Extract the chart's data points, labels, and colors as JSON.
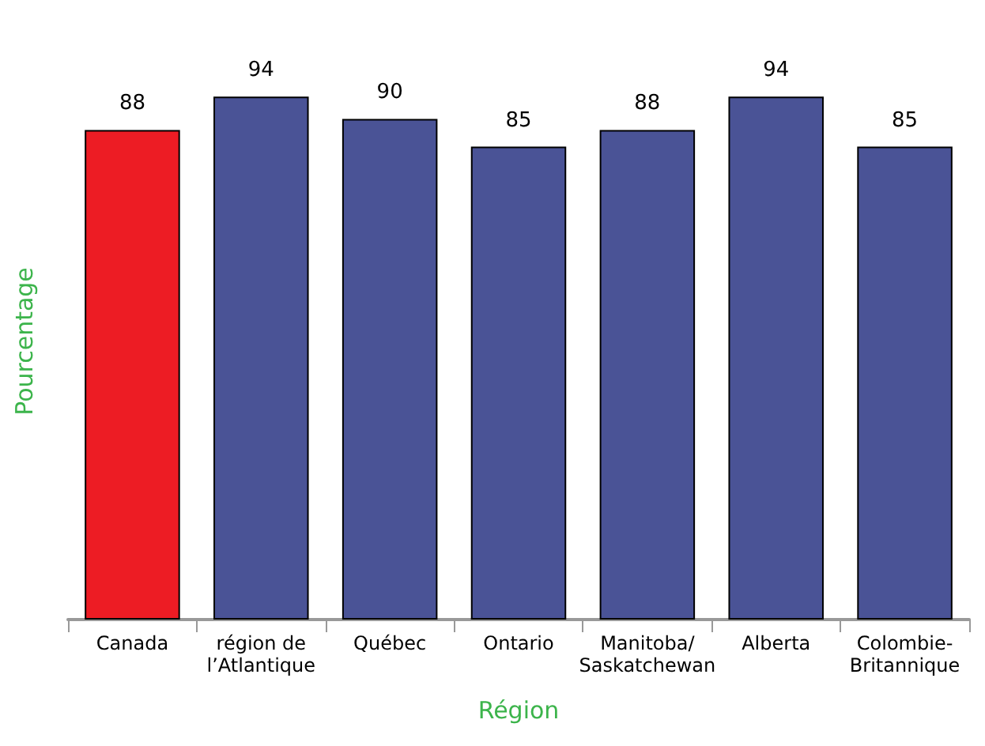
{
  "chart_data": {
    "type": "bar",
    "xlabel": "Région",
    "ylabel": "Pourcentage",
    "categories": [
      "Canada",
      "région de\nl’Atlantique",
      "Québec",
      "Ontario",
      "Manitoba/\nSaskatchewan",
      "Alberta",
      "Colombie-\nBritannique"
    ],
    "values": [
      88,
      94,
      90,
      85,
      88,
      94,
      85
    ],
    "colors": [
      "#ed1c24",
      "#4a5396",
      "#4a5396",
      "#4a5396",
      "#4a5396",
      "#4a5396",
      "#4a5396"
    ],
    "tick_labels": "x",
    "data_labels": true,
    "grid": false
  }
}
